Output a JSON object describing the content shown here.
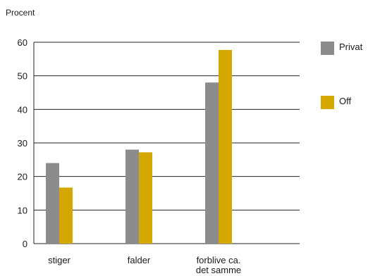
{
  "chart_data": {
    "type": "bar",
    "title": "",
    "ylabel": "Procent",
    "xlabel": "",
    "ylim": [
      0,
      60
    ],
    "yticks": [
      0,
      10,
      20,
      30,
      40,
      50,
      60
    ],
    "grid": true,
    "legend_position": "right",
    "categories": [
      [
        "stiger"
      ],
      [
        "falder"
      ],
      [
        "forblive ca.",
        "det samme"
      ]
    ],
    "series": [
      {
        "name": "Privat",
        "color": "#8c8c8c",
        "values": [
          24,
          28,
          48
        ]
      },
      {
        "name": "Off",
        "color": "#d4a800",
        "values": [
          16.7,
          27.2,
          57.7
        ]
      }
    ]
  }
}
